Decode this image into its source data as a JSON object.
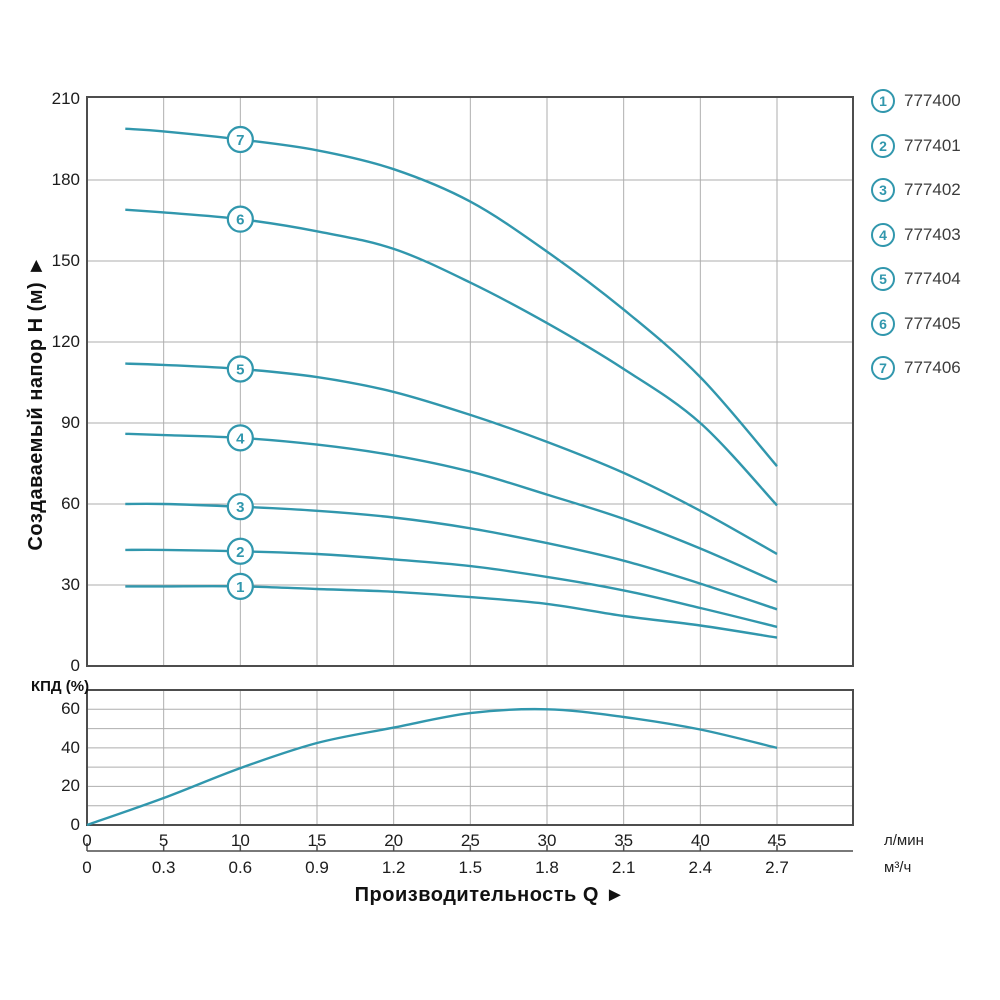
{
  "colors": {
    "curve": "#3197ad",
    "grid": "#aeaeae",
    "frame": "#4d4d4d",
    "text": "#1c1c1c",
    "model_text": "#3c3c3c",
    "background": "#ffffff"
  },
  "axes": {
    "y_main": {
      "title": "Создаваемый напор H (м) ►"
    },
    "y_eff": {
      "title": "КПД (%)"
    },
    "x": {
      "title": "Производительность Q ►",
      "unit_top": "л/мин",
      "unit_bottom": "м³/ч"
    }
  },
  "legend": {
    "items": [
      {
        "num": "1",
        "model": "777400"
      },
      {
        "num": "2",
        "model": "777401"
      },
      {
        "num": "3",
        "model": "777402"
      },
      {
        "num": "4",
        "model": "777403"
      },
      {
        "num": "5",
        "model": "777404"
      },
      {
        "num": "6",
        "model": "777405"
      },
      {
        "num": "7",
        "model": "777406"
      }
    ]
  },
  "chart_data": [
    {
      "type": "line",
      "name": "head_curves",
      "title": "",
      "xlabel": "Производительность Q",
      "x_units": [
        "л/мин",
        "м³/ч"
      ],
      "ylabel": "Создаваемый напор H (м)",
      "xlim": [
        0,
        50
      ],
      "ylim": [
        0,
        210
      ],
      "grid": true,
      "legend_position": "right",
      "y_ticks": [
        0,
        30,
        60,
        90,
        120,
        150,
        180,
        210
      ],
      "x_ticks_lmin": [
        0,
        5,
        10,
        15,
        20,
        25,
        30,
        35,
        40,
        45
      ],
      "x_ticks_m3h": [
        0,
        0.3,
        0.6,
        0.9,
        1.2,
        1.5,
        1.8,
        2.1,
        2.4,
        2.7
      ],
      "x_lmin": [
        2.5,
        5,
        10,
        15,
        20,
        25,
        30,
        35,
        40,
        45
      ],
      "marker_x_lmin": 10,
      "series": [
        {
          "curve": "1",
          "model": "777400",
          "values": [
            29.5,
            29.5,
            29.5,
            28.5,
            27.5,
            25.5,
            23,
            18.5,
            15,
            10.5
          ]
        },
        {
          "curve": "2",
          "model": "777401",
          "values": [
            43,
            43,
            42.5,
            41.5,
            39.5,
            37,
            33,
            28,
            21.5,
            14.5
          ]
        },
        {
          "curve": "3",
          "model": "777402",
          "values": [
            60,
            60,
            59,
            57.5,
            55,
            51,
            45.5,
            39,
            30.5,
            21
          ]
        },
        {
          "curve": "4",
          "model": "777403",
          "values": [
            86,
            85.5,
            84.5,
            82,
            78,
            72,
            63.5,
            54.5,
            43.5,
            31
          ]
        },
        {
          "curve": "5",
          "model": "777404",
          "values": [
            112,
            111.5,
            110,
            107,
            101.5,
            93,
            83,
            71.5,
            57.5,
            41.5
          ]
        },
        {
          "curve": "6",
          "model": "777405",
          "values": [
            169,
            168,
            165.5,
            161,
            154.5,
            142,
            127,
            110,
            90,
            59.5
          ]
        },
        {
          "curve": "7",
          "model": "777406",
          "values": [
            199,
            198,
            195,
            191,
            184,
            172,
            153.5,
            132,
            107,
            74
          ]
        }
      ]
    },
    {
      "type": "line",
      "name": "efficiency_curve",
      "ylabel": "КПД (%)",
      "xlim": [
        0,
        50
      ],
      "ylim": [
        0,
        70
      ],
      "grid": true,
      "y_ticks": [
        0,
        20,
        40,
        60
      ],
      "x_lmin": [
        0,
        5,
        10,
        15,
        20,
        25,
        30,
        35,
        40,
        45
      ],
      "series": [
        {
          "curve": "КПД",
          "values": [
            0,
            14,
            29.5,
            42.5,
            50.5,
            58,
            60,
            56,
            49.5,
            40
          ]
        }
      ]
    }
  ]
}
